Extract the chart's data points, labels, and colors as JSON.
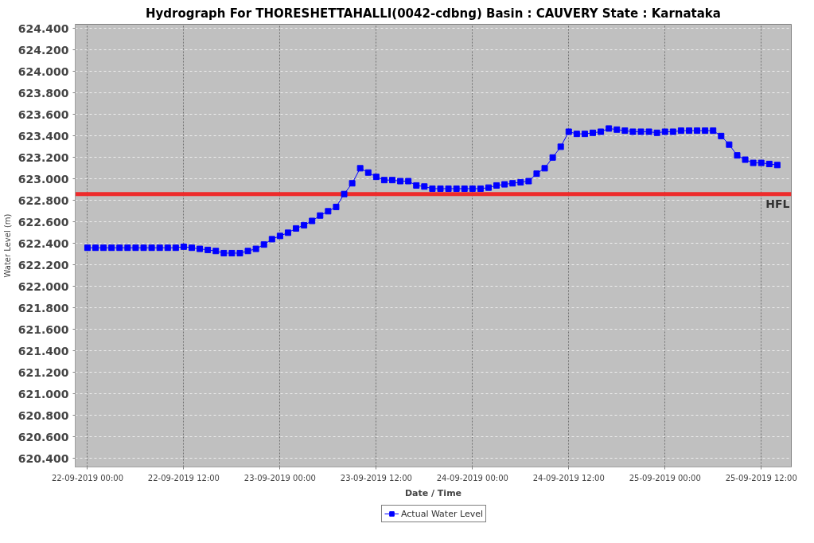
{
  "chart_data": {
    "type": "line",
    "title": "Hydrograph For THORESHETTAHALLI(0042-cdbng) Basin : CAUVERY State : Karnataka",
    "xlabel": "Date / Time",
    "ylabel": "Water Level (m)",
    "x": [
      "2019-09-22T00:00",
      "2019-09-22T01:00",
      "2019-09-22T02:00",
      "2019-09-22T03:00",
      "2019-09-22T04:00",
      "2019-09-22T05:00",
      "2019-09-22T06:00",
      "2019-09-22T07:00",
      "2019-09-22T08:00",
      "2019-09-22T09:00",
      "2019-09-22T10:00",
      "2019-09-22T11:00",
      "2019-09-22T12:00",
      "2019-09-22T13:00",
      "2019-09-22T14:00",
      "2019-09-22T15:00",
      "2019-09-22T16:00",
      "2019-09-22T17:00",
      "2019-09-22T18:00",
      "2019-09-22T19:00",
      "2019-09-22T20:00",
      "2019-09-22T21:00",
      "2019-09-22T22:00",
      "2019-09-22T23:00",
      "2019-09-23T00:00",
      "2019-09-23T01:00",
      "2019-09-23T02:00",
      "2019-09-23T03:00",
      "2019-09-23T04:00",
      "2019-09-23T05:00",
      "2019-09-23T06:00",
      "2019-09-23T07:00",
      "2019-09-23T08:00",
      "2019-09-23T09:00",
      "2019-09-23T10:00",
      "2019-09-23T11:00",
      "2019-09-23T12:00",
      "2019-09-23T13:00",
      "2019-09-23T14:00",
      "2019-09-23T15:00",
      "2019-09-23T16:00",
      "2019-09-23T17:00",
      "2019-09-23T18:00",
      "2019-09-23T19:00",
      "2019-09-23T20:00",
      "2019-09-23T21:00",
      "2019-09-23T22:00",
      "2019-09-23T23:00",
      "2019-09-24T00:00",
      "2019-09-24T01:00",
      "2019-09-24T02:00",
      "2019-09-24T03:00",
      "2019-09-24T04:00",
      "2019-09-24T05:00",
      "2019-09-24T06:00",
      "2019-09-24T07:00",
      "2019-09-24T08:00",
      "2019-09-24T09:00",
      "2019-09-24T10:00",
      "2019-09-24T11:00",
      "2019-09-24T12:00",
      "2019-09-24T13:00",
      "2019-09-24T14:00",
      "2019-09-24T15:00",
      "2019-09-24T16:00",
      "2019-09-24T17:00",
      "2019-09-24T18:00",
      "2019-09-24T19:00",
      "2019-09-24T20:00",
      "2019-09-24T21:00",
      "2019-09-24T22:00",
      "2019-09-24T23:00",
      "2019-09-25T00:00",
      "2019-09-25T01:00",
      "2019-09-25T02:00",
      "2019-09-25T03:00",
      "2019-09-25T04:00",
      "2019-09-25T05:00",
      "2019-09-25T06:00",
      "2019-09-25T07:00",
      "2019-09-25T08:00",
      "2019-09-25T09:00",
      "2019-09-25T10:00",
      "2019-09-25T11:00",
      "2019-09-25T12:00",
      "2019-09-25T13:00",
      "2019-09-25T14:00"
    ],
    "series": [
      {
        "name": "Actual Water Level",
        "color": "#0000ff",
        "values": [
          622.36,
          622.36,
          622.36,
          622.36,
          622.36,
          622.36,
          622.36,
          622.36,
          622.36,
          622.36,
          622.36,
          622.36,
          622.37,
          622.36,
          622.35,
          622.34,
          622.33,
          622.31,
          622.31,
          622.31,
          622.33,
          622.35,
          622.39,
          622.44,
          622.47,
          622.5,
          622.54,
          622.57,
          622.61,
          622.66,
          622.7,
          622.74,
          622.86,
          622.96,
          623.1,
          623.06,
          623.02,
          622.99,
          622.99,
          622.98,
          622.98,
          622.94,
          622.93,
          622.91,
          622.91,
          622.91,
          622.91,
          622.91,
          622.91,
          622.91,
          622.92,
          622.94,
          622.95,
          622.96,
          622.97,
          622.98,
          623.05,
          623.1,
          623.2,
          623.3,
          623.44,
          623.42,
          623.42,
          623.43,
          623.44,
          623.47,
          623.46,
          623.45,
          623.44,
          623.44,
          623.44,
          623.43,
          623.44,
          623.44,
          623.45,
          623.45,
          623.45,
          623.45,
          623.45,
          623.4,
          623.32,
          623.22,
          623.18,
          623.15,
          623.15,
          623.14,
          623.13
        ]
      }
    ],
    "xlim": [
      "2019-09-21T22:28",
      "2019-09-25T15:45"
    ],
    "xticks": [
      {
        "value": "2019-09-22T00:00",
        "label": "22-09-2019 00:00"
      },
      {
        "value": "2019-09-22T12:00",
        "label": "22-09-2019 12:00"
      },
      {
        "value": "2019-09-23T00:00",
        "label": "23-09-2019 00:00"
      },
      {
        "value": "2019-09-23T12:00",
        "label": "23-09-2019 12:00"
      },
      {
        "value": "2019-09-24T00:00",
        "label": "24-09-2019 00:00"
      },
      {
        "value": "2019-09-24T12:00",
        "label": "24-09-2019 12:00"
      },
      {
        "value": "2019-09-25T00:00",
        "label": "25-09-2019 00:00"
      },
      {
        "value": "2019-09-25T12:00",
        "label": "25-09-2019 12:00"
      }
    ],
    "ylim": [
      620.32,
      624.44
    ],
    "yticks": [
      {
        "value": 620.4,
        "label": "620.400"
      },
      {
        "value": 620.6,
        "label": "620.600"
      },
      {
        "value": 620.8,
        "label": "620.800"
      },
      {
        "value": 621.0,
        "label": "621.000"
      },
      {
        "value": 621.2,
        "label": "621.200"
      },
      {
        "value": 621.4,
        "label": "621.400"
      },
      {
        "value": 621.6,
        "label": "621.600"
      },
      {
        "value": 621.8,
        "label": "621.800"
      },
      {
        "value": 622.0,
        "label": "622.000"
      },
      {
        "value": 622.2,
        "label": "622.200"
      },
      {
        "value": 622.4,
        "label": "622.400"
      },
      {
        "value": 622.6,
        "label": "622.600"
      },
      {
        "value": 622.8,
        "label": "622.800"
      },
      {
        "value": 623.0,
        "label": "623.000"
      },
      {
        "value": 623.2,
        "label": "623.200"
      },
      {
        "value": 623.4,
        "label": "623.400"
      },
      {
        "value": 623.6,
        "label": "623.600"
      },
      {
        "value": 623.8,
        "label": "623.800"
      },
      {
        "value": 624.0,
        "label": "624.000"
      },
      {
        "value": 624.2,
        "label": "624.200"
      },
      {
        "value": 624.4,
        "label": "624.400"
      }
    ],
    "ref_lines": [
      {
        "axis": "y",
        "value": 622.86,
        "label": "HFL",
        "color": "#ee2b2b"
      }
    ],
    "grid": true,
    "legend": "bottom",
    "marker": "square",
    "line_style": "solid"
  }
}
